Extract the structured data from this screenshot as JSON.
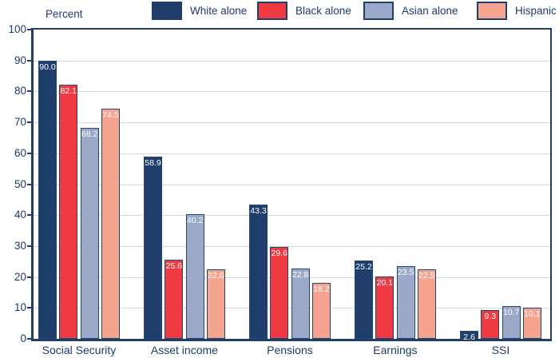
{
  "colors": {
    "axis": "#1F3E6C",
    "text": "#1C3B6A",
    "grid": "#D8D8D8",
    "value_label": "#FFFFFF",
    "background": "#FFFFFF"
  },
  "chart_data": {
    "type": "bar",
    "title": "",
    "ylabel": "Percent",
    "xlabel": "",
    "ylim": [
      0,
      100
    ],
    "yticks": [
      0,
      10,
      20,
      30,
      40,
      50,
      60,
      70,
      80,
      90,
      100
    ],
    "grid": "horizontal",
    "legend_position": "top",
    "value_labels_shown": true,
    "value_label_format": "one_decimal",
    "categories": [
      "Social Security",
      "Asset income",
      "Pensions",
      "Earnings",
      "SSI"
    ],
    "series": [
      {
        "name": "White alone",
        "color": "#1F3E6C",
        "values": [
          90.0,
          58.9,
          43.3,
          25.2,
          2.6
        ]
      },
      {
        "name": "Black alone",
        "color": "#EE3A42",
        "values": [
          82.1,
          25.6,
          29.6,
          20.1,
          9.3
        ]
      },
      {
        "name": "Asian alone",
        "color": "#9CA8C8",
        "values": [
          68.2,
          40.2,
          22.8,
          23.5,
          10.7
        ]
      },
      {
        "name": "Hispanic",
        "color": "#F5A48F",
        "values": [
          74.5,
          22.6,
          18.2,
          22.5,
          10.1
        ]
      }
    ]
  }
}
